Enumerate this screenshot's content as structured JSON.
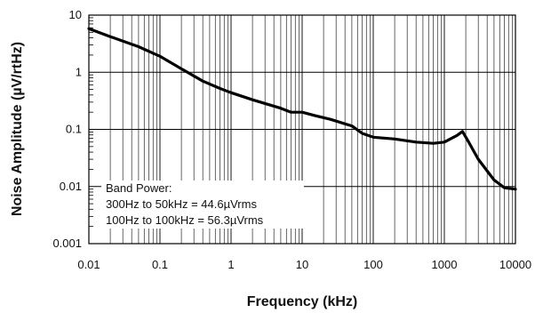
{
  "chart_data": {
    "type": "line",
    "x_scale": "log",
    "y_scale": "log",
    "xlim": [
      0.01,
      10000
    ],
    "ylim": [
      0.001,
      10
    ],
    "grid": true,
    "xlabel": "Frequency (kHz)",
    "ylabel": "Noise Amplitude (µV/rtHz)",
    "x_tick_labels": [
      "0.01",
      "0.1",
      "1",
      "10",
      "100",
      "1000",
      "10000"
    ],
    "y_tick_labels": [
      "10",
      "1",
      "0.1",
      "0.01",
      "0.001"
    ],
    "annotations": [
      "Band Power:",
      "300Hz to 50kHz = 44.6µVrms",
      "100Hz to 100kHz = 56.3µVrms"
    ],
    "series": [
      {
        "color": "#000000",
        "x": [
          0.01,
          0.02,
          0.05,
          0.1,
          0.2,
          0.4,
          0.7,
          1,
          2,
          5,
          7,
          10,
          15,
          25,
          50,
          70,
          100,
          200,
          400,
          700,
          1000,
          1500,
          1800,
          2200,
          3000,
          5000,
          7000,
          10000
        ],
        "y": [
          5.8,
          4.2,
          2.8,
          1.9,
          1.15,
          0.7,
          0.52,
          0.44,
          0.33,
          0.235,
          0.2,
          0.2,
          0.175,
          0.15,
          0.115,
          0.085,
          0.073,
          0.068,
          0.06,
          0.057,
          0.06,
          0.078,
          0.092,
          0.06,
          0.03,
          0.013,
          0.0095,
          0.009
        ]
      }
    ]
  }
}
